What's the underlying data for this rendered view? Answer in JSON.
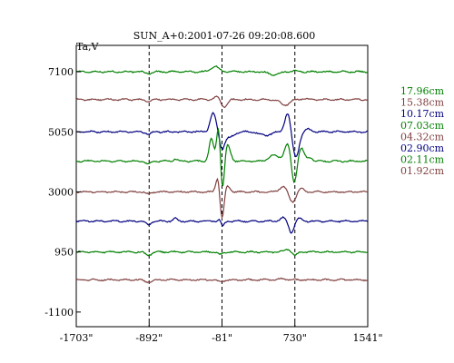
{
  "chart_data": {
    "type": "line",
    "title": "SUN_A+0:2001-07-26 09:20:08.600",
    "ylabel": "Ta,V",
    "xlabel": "",
    "x_ticks": [
      "-1703\"",
      "-892\"",
      "-81\"",
      "730\"",
      "1541\""
    ],
    "x_tick_values": [
      -1703,
      -892,
      -81,
      730,
      1541
    ],
    "xlim": [
      -1703,
      1541
    ],
    "y_ticks": [
      "7100",
      "5050",
      "3000",
      "950",
      "-1100"
    ],
    "y_tick_values": [
      7100,
      5050,
      3000,
      950,
      -1100
    ],
    "ylim": [
      -1600,
      8000
    ],
    "vlines": [
      -892,
      -81,
      730
    ],
    "grid": false,
    "legend_position": "right",
    "series": [
      {
        "name": "17.96cm",
        "color": "#008000",
        "baseline": 7100,
        "features": [
          [
            -900,
            -60,
            50
          ],
          [
            -160,
            190,
            60
          ],
          [
            500,
            -110,
            80
          ],
          [
            730,
            30,
            40
          ]
        ]
      },
      {
        "name": "15.38cm",
        "color": "#804040",
        "baseline": 6150,
        "features": [
          [
            -900,
            -60,
            50
          ],
          [
            -130,
            110,
            50
          ],
          [
            -60,
            -260,
            50
          ],
          [
            620,
            -190,
            70
          ],
          [
            830,
            40,
            40
          ]
        ]
      },
      {
        "name": "10.17cm",
        "color": "#000080",
        "baseline": 5050,
        "features": [
          [
            -900,
            -80,
            40
          ],
          [
            -180,
            640,
            45
          ],
          [
            -80,
            -520,
            40
          ],
          [
            0,
            -190,
            70
          ],
          [
            400,
            -120,
            90
          ],
          [
            650,
            650,
            45
          ],
          [
            740,
            -870,
            50
          ],
          [
            880,
            90,
            50
          ]
        ]
      },
      {
        "name": "07.03cm",
        "color": "#008000",
        "baseline": 4050,
        "features": [
          [
            -900,
            -100,
            40
          ],
          [
            -600,
            80,
            30
          ],
          [
            -200,
            760,
            35
          ],
          [
            -120,
            1200,
            30
          ],
          [
            -75,
            -1100,
            30
          ],
          [
            -20,
            560,
            45
          ],
          [
            500,
            200,
            80
          ],
          [
            650,
            600,
            50
          ],
          [
            720,
            -800,
            40
          ],
          [
            800,
            450,
            45
          ],
          [
            900,
            120,
            40
          ]
        ]
      },
      {
        "name": "04.32cm",
        "color": "#804040",
        "baseline": 3000,
        "features": [
          [
            -900,
            -80,
            40
          ],
          [
            -130,
            500,
            30
          ],
          [
            -80,
            -950,
            30
          ],
          [
            -20,
            200,
            40
          ],
          [
            600,
            180,
            60
          ],
          [
            700,
            -350,
            50
          ],
          [
            800,
            120,
            40
          ]
        ]
      },
      {
        "name": "02.90cm",
        "color": "#000080",
        "baseline": 2000,
        "features": [
          [
            -900,
            -120,
            40
          ],
          [
            -600,
            90,
            30
          ],
          [
            -100,
            150,
            30
          ],
          [
            -80,
            -250,
            30
          ],
          [
            600,
            120,
            50
          ],
          [
            690,
            -380,
            40
          ],
          [
            780,
            100,
            40
          ]
        ]
      },
      {
        "name": "02.11cm",
        "color": "#008000",
        "baseline": 950,
        "features": [
          [
            -900,
            -100,
            50
          ],
          [
            -100,
            -90,
            40
          ],
          [
            650,
            90,
            50
          ],
          [
            730,
            -120,
            40
          ]
        ]
      },
      {
        "name": "01.92cm",
        "color": "#804040",
        "baseline": 0,
        "features": [
          [
            -900,
            -70,
            60
          ],
          [
            -100,
            -60,
            50
          ],
          [
            600,
            40,
            60
          ]
        ]
      }
    ]
  }
}
